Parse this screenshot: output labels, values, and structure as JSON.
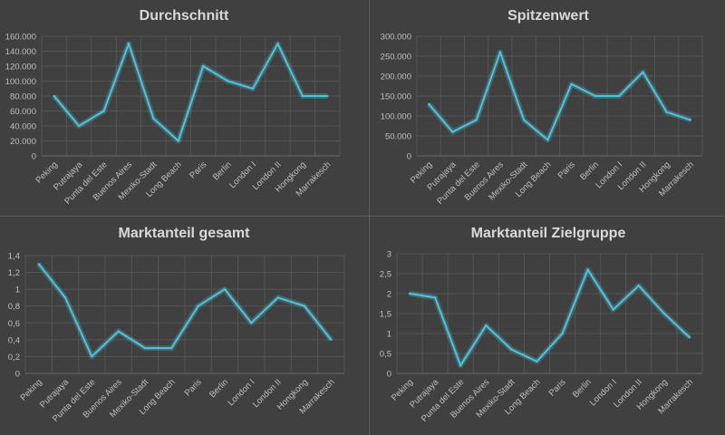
{
  "colors": {
    "background": "#404040",
    "series": "#4fc3dc",
    "text": "#d9d9d9",
    "grid": "#555555"
  },
  "chart_data": [
    {
      "type": "line",
      "title": "Durchschnitt",
      "categories": [
        "Peking",
        "Putrajaya",
        "Punta del Este",
        "Buenos Aires",
        "Mexiko-Stadt",
        "Long Beach",
        "Paris",
        "Berlin",
        "London I",
        "London II",
        "Hongkong",
        "Marrakesch"
      ],
      "values": [
        80000,
        40000,
        60000,
        150000,
        50000,
        20000,
        120000,
        100000,
        90000,
        150000,
        80000,
        80000
      ],
      "yticks": [
        "0",
        "20.000",
        "40.000",
        "60.000",
        "80.000",
        "100.000",
        "120.000",
        "140.000",
        "160.000"
      ],
      "ylim": [
        0,
        160000
      ],
      "grid": true
    },
    {
      "type": "line",
      "title": "Spitzenwert",
      "categories": [
        "Peking",
        "Putrajaya",
        "Punta del Este",
        "Buenos Aires",
        "Mexiko-Stadt",
        "Long Beach",
        "Paris",
        "Berlin",
        "London I",
        "London II",
        "Hongkong",
        "Marrakesch"
      ],
      "values": [
        130000,
        60000,
        90000,
        260000,
        90000,
        40000,
        180000,
        150000,
        150000,
        210000,
        110000,
        90000
      ],
      "yticks": [
        "0",
        "50.000",
        "100.000",
        "150.000",
        "200.000",
        "250.000",
        "300.000"
      ],
      "ylim": [
        0,
        300000
      ],
      "grid": true
    },
    {
      "type": "line",
      "title": "Marktanteil gesamt",
      "categories": [
        "Peking",
        "Putrajaya",
        "Punta del Este",
        "Buenos Aires",
        "Mexiko-Stadt",
        "Long Beach",
        "Paris",
        "Berlin",
        "London I",
        "London II",
        "Hongkong",
        "Marrakesch"
      ],
      "values": [
        1.3,
        0.9,
        0.2,
        0.5,
        0.3,
        0.3,
        0.8,
        1.0,
        0.6,
        0.9,
        0.8,
        0.4
      ],
      "yticks": [
        "0",
        "0,2",
        "0,4",
        "0,6",
        "0,8",
        "1",
        "1,2",
        "1,4"
      ],
      "ylim": [
        0,
        1.4
      ],
      "grid": true
    },
    {
      "type": "line",
      "title": "Marktanteil Zielgruppe",
      "categories": [
        "Peking",
        "Putrajaya",
        "Punta del Este",
        "Buenos Aires",
        "Mexiko-Stadt",
        "Long Beach",
        "Paris",
        "Berlin",
        "London I",
        "London II",
        "Hongkong",
        "Marrakesch"
      ],
      "values": [
        2.0,
        1.9,
        0.2,
        1.2,
        0.6,
        0.3,
        1.0,
        2.6,
        1.6,
        2.2,
        1.5,
        0.9
      ],
      "yticks": [
        "0",
        "0,5",
        "1",
        "1,5",
        "2",
        "2,5",
        "3"
      ],
      "ylim": [
        0,
        3
      ],
      "grid": true
    }
  ]
}
